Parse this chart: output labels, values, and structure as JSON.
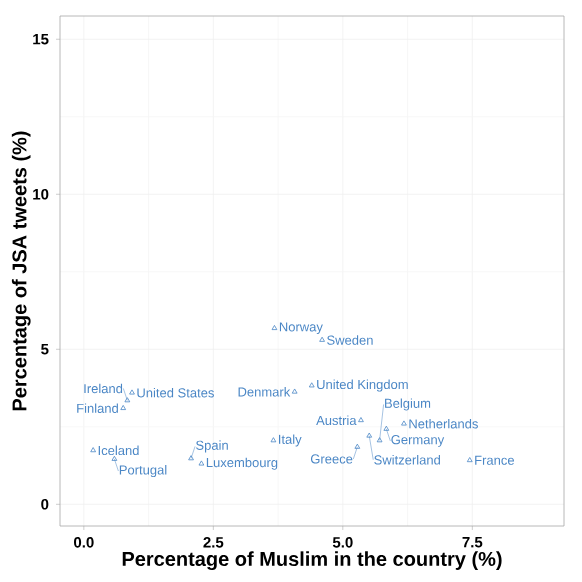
{
  "chart_data": {
    "type": "scatter",
    "xlabel": "Percentage of Muslim in the country (%)",
    "ylabel": "Percentage of JSA tweets (%)",
    "xlim": [
      -0.46,
      9.27
    ],
    "ylim": [
      -0.7,
      15.75
    ],
    "xticks": [
      {
        "value": 0,
        "label": "0.0"
      },
      2.5,
      {
        "value": 5,
        "label": "5.0"
      },
      7.5
    ],
    "yticks": [
      0,
      5,
      10,
      15
    ],
    "grid": true,
    "marker": "triangle",
    "series": [
      {
        "color": "#4a86c5",
        "x": [
          3.68,
          4.6,
          0.93,
          0.84,
          0.76,
          0.18,
          0.59,
          2.07,
          2.27,
          3.66,
          4.07,
          4.4,
          5.35,
          6.18,
          5.84,
          5.51,
          5.71,
          5.28,
          7.45
        ],
        "values": [
          5.68,
          5.3,
          3.6,
          3.35,
          3.1,
          1.74,
          1.46,
          1.48,
          1.31,
          2.06,
          3.63,
          3.83,
          2.71,
          2.6,
          2.43,
          2.21,
          2.06,
          1.85,
          1.42
        ]
      }
    ],
    "annotations": [
      {
        "text": "Norway",
        "x": 3.68,
        "y": 5.68
      },
      {
        "text": "Sweden",
        "x": 4.6,
        "y": 5.3
      },
      {
        "text": "United States",
        "x": 0.93,
        "y": 3.6
      },
      {
        "text": "Ireland",
        "x": 0.84,
        "y": 3.35
      },
      {
        "text": "Finland",
        "x": 0.76,
        "y": 3.1
      },
      {
        "text": "Iceland",
        "x": 0.18,
        "y": 1.74
      },
      {
        "text": "Portugal",
        "x": 0.59,
        "y": 1.46
      },
      {
        "text": "Spain",
        "x": 2.07,
        "y": 1.48
      },
      {
        "text": "Luxembourg",
        "x": 2.27,
        "y": 1.31
      },
      {
        "text": "Italy",
        "x": 3.66,
        "y": 2.06
      },
      {
        "text": "Denmark",
        "x": 4.07,
        "y": 3.63
      },
      {
        "text": "United Kingdom",
        "x": 4.4,
        "y": 3.83
      },
      {
        "text": "Austria",
        "x": 5.35,
        "y": 2.71
      },
      {
        "text": "Netherlands",
        "x": 6.18,
        "y": 2.6
      },
      {
        "text": "Germany",
        "x": 5.84,
        "y": 2.43
      },
      {
        "text": "Switzerland",
        "x": 5.51,
        "y": 2.21
      },
      {
        "text": "Belgium",
        "x": 5.71,
        "y": 2.06
      },
      {
        "text": "Greece",
        "x": 5.28,
        "y": 1.85
      },
      {
        "text": "France",
        "x": 7.45,
        "y": 1.42
      }
    ]
  }
}
